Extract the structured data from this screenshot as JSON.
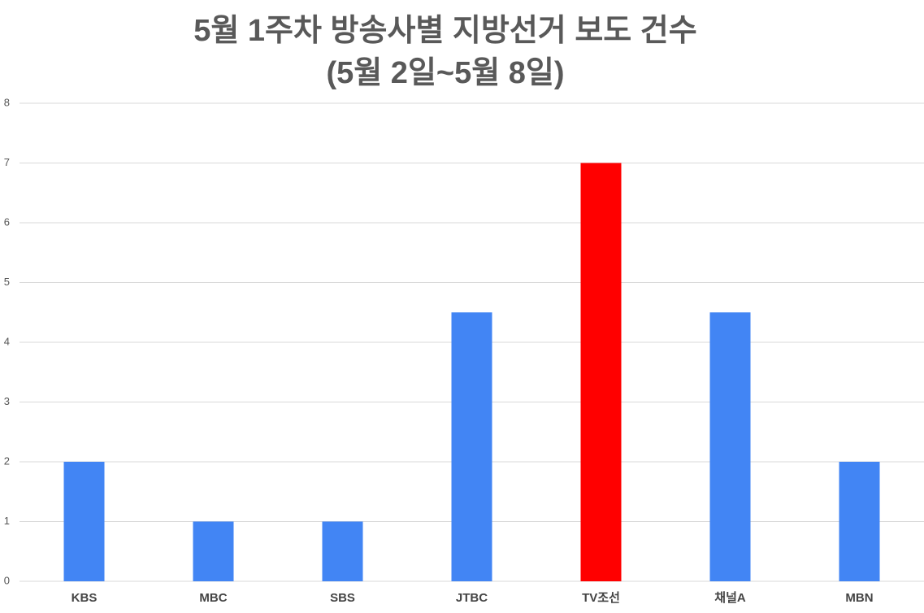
{
  "chart_data": {
    "type": "bar",
    "title": "5월 1주차 방송사별 지방선거 보도 건수",
    "subtitle": "(5월 2일~5월 8일)",
    "categories": [
      "KBS",
      "MBC",
      "SBS",
      "JTBC",
      "TV조선",
      "채널A",
      "MBN"
    ],
    "values": [
      2,
      1,
      1,
      4.5,
      7,
      4.5,
      2
    ],
    "colors": [
      "#4285f4",
      "#4285f4",
      "#4285f4",
      "#4285f4",
      "#ff0000",
      "#4285f4",
      "#4285f4"
    ],
    "ylim": [
      0,
      8
    ],
    "yticks": [
      0,
      1,
      2,
      3,
      4,
      5,
      6,
      7,
      8
    ],
    "grid": true
  }
}
